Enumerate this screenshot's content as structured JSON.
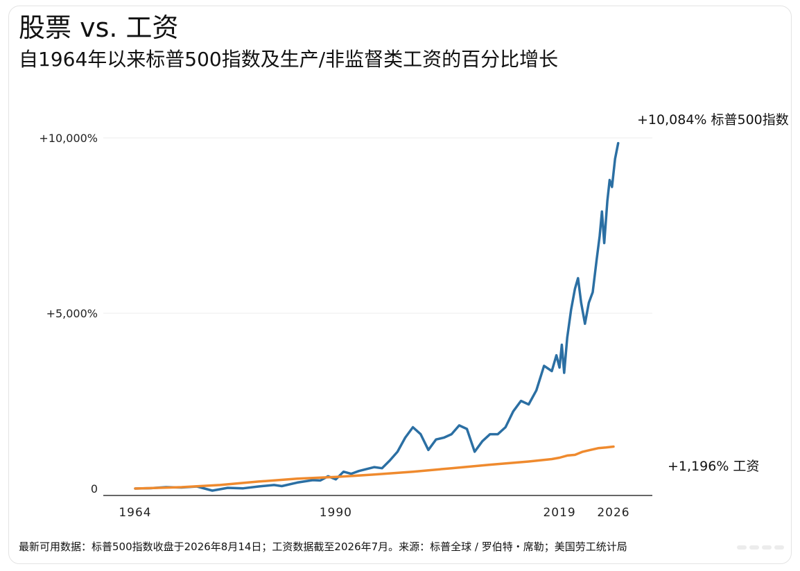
{
  "header": {
    "title": "股票 vs. 工资",
    "subtitle": "自1964年以来标普500指数及生产/非监督类工资的百分比增长"
  },
  "footnote": "最新可用数据：标普500指数收盘于2026年8月14日；工资数据截至2026年7月。来源：标普全球 / 罗伯特・席勒；美国劳工统计局",
  "colors": {
    "sp500": "#2b6fa3",
    "wages": "#ef8a2e",
    "grid": "#ececec",
    "axis": "#333333"
  },
  "chart_data": {
    "type": "line",
    "title": "股票 vs. 工资",
    "subtitle": "自1964年以来标普500指数及生产/非监督类工资的百分比增长",
    "xlabel": "",
    "ylabel": "",
    "xlim": [
      1962,
      2032
    ],
    "ylim": [
      -200,
      10000
    ],
    "x_ticks": [
      1964,
      1990,
      2019,
      2026
    ],
    "y_ticks": [
      0,
      5000,
      10000
    ],
    "y_tick_labels": [
      "0",
      "+5,000%",
      "+10,000%"
    ],
    "grid": true,
    "legend": "none",
    "series": [
      {
        "name": "标普500指数",
        "end_label": "+10,084% 标普500指数",
        "color": "#2b6fa3",
        "points": [
          [
            1964,
            0
          ],
          [
            1966,
            10
          ],
          [
            1968,
            40
          ],
          [
            1970,
            30
          ],
          [
            1972,
            60
          ],
          [
            1974,
            -60
          ],
          [
            1976,
            20
          ],
          [
            1978,
            5
          ],
          [
            1980,
            60
          ],
          [
            1982,
            100
          ],
          [
            1983,
            70
          ],
          [
            1985,
            170
          ],
          [
            1987,
            240
          ],
          [
            1988,
            230
          ],
          [
            1989,
            350
          ],
          [
            1990,
            260
          ],
          [
            1991,
            480
          ],
          [
            1992,
            420
          ],
          [
            1993,
            500
          ],
          [
            1995,
            610
          ],
          [
            1996,
            580
          ],
          [
            1997,
            800
          ],
          [
            1998,
            1050
          ],
          [
            1999,
            1450
          ],
          [
            2000,
            1750
          ],
          [
            2001,
            1550
          ],
          [
            2002,
            1100
          ],
          [
            2003,
            1400
          ],
          [
            2004,
            1450
          ],
          [
            2005,
            1550
          ],
          [
            2006,
            1800
          ],
          [
            2007,
            1700
          ],
          [
            2008,
            1050
          ],
          [
            2009,
            1350
          ],
          [
            2010,
            1550
          ],
          [
            2011,
            1550
          ],
          [
            2012,
            1750
          ],
          [
            2013,
            2200
          ],
          [
            2014,
            2500
          ],
          [
            2015,
            2400
          ],
          [
            2016,
            2800
          ],
          [
            2017,
            3500
          ],
          [
            2018,
            3350
          ],
          [
            2018.6,
            3800
          ],
          [
            2019,
            3450
          ],
          [
            2019.3,
            4100
          ],
          [
            2019.6,
            3300
          ],
          [
            2020,
            4300
          ],
          [
            2020.5,
            5100
          ],
          [
            2021,
            5700
          ],
          [
            2021.4,
            6000
          ],
          [
            2021.8,
            5300
          ],
          [
            2022.3,
            4700
          ],
          [
            2022.8,
            5300
          ],
          [
            2023.3,
            5600
          ],
          [
            2023.8,
            6500
          ],
          [
            2024.2,
            7200
          ],
          [
            2024.5,
            7900
          ],
          [
            2024.8,
            7000
          ],
          [
            2025.2,
            8200
          ],
          [
            2025.5,
            8800
          ],
          [
            2025.8,
            8600
          ],
          [
            2026.2,
            9400
          ],
          [
            2026.6,
            9850
          ]
        ]
      },
      {
        "name": "工资",
        "end_label": "+1,196% 工资",
        "color": "#ef8a2e",
        "points": [
          [
            1964,
            0
          ],
          [
            1970,
            40
          ],
          [
            1975,
            100
          ],
          [
            1980,
            200
          ],
          [
            1985,
            280
          ],
          [
            1990,
            330
          ],
          [
            1995,
            400
          ],
          [
            2000,
            480
          ],
          [
            2005,
            580
          ],
          [
            2010,
            680
          ],
          [
            2015,
            770
          ],
          [
            2018,
            840
          ],
          [
            2019,
            880
          ],
          [
            2020,
            940
          ],
          [
            2021,
            960
          ],
          [
            2022,
            1050
          ],
          [
            2023,
            1100
          ],
          [
            2024,
            1150
          ],
          [
            2025,
            1170
          ],
          [
            2026,
            1196
          ]
        ]
      }
    ]
  }
}
